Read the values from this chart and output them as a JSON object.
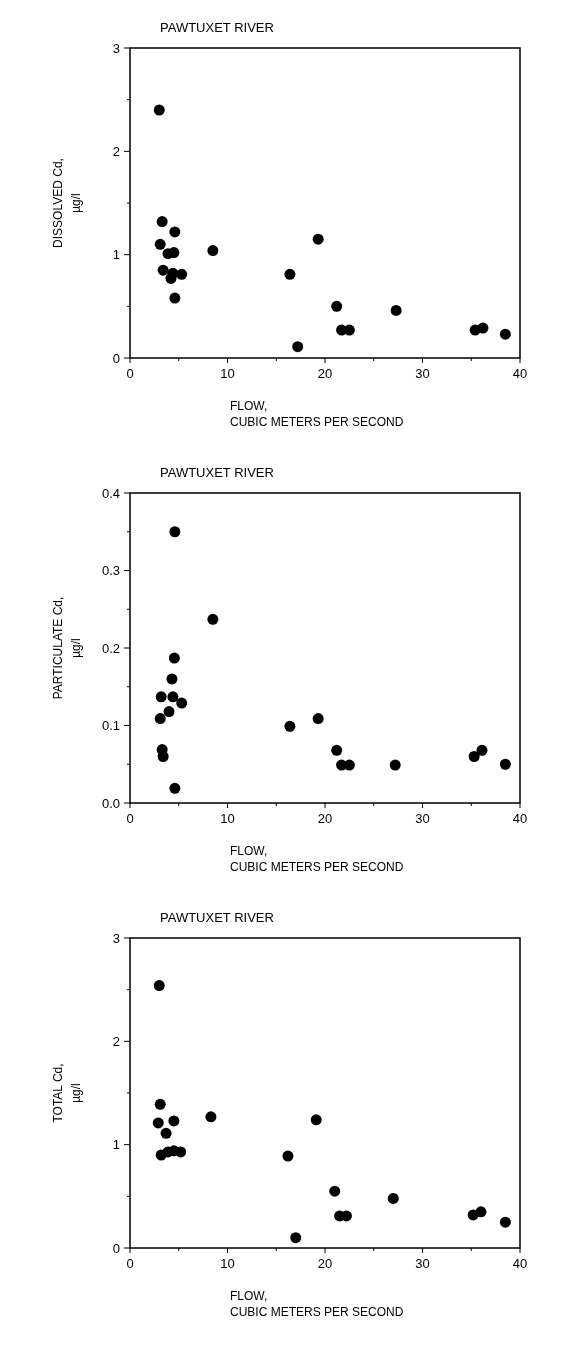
{
  "chart_data": [
    {
      "type": "scatter",
      "title": "PAWTUXET RIVER",
      "xlabel": "FLOW,\nCUBIC METERS PER SECOND",
      "ylabel": "DISSOLVED Cd,\nµg/l",
      "marker": "circle",
      "grid": false,
      "xlim": [
        0,
        40
      ],
      "ylim": [
        0,
        3
      ],
      "xticks": [
        0,
        {
          "value": 5,
          "label": null
        },
        10,
        {
          "value": 15,
          "label": null
        },
        20,
        {
          "value": 25,
          "label": null
        },
        30,
        {
          "value": 35,
          "label": null
        },
        40
      ],
      "yticks": [
        0,
        {
          "value": 0.5,
          "label": null
        },
        1,
        {
          "value": 1.5,
          "label": null
        },
        2,
        {
          "value": 2.5,
          "label": null
        },
        3
      ],
      "series": [
        {
          "color": "#000000",
          "x": [
            3.0,
            3.3,
            4.6,
            3.1,
            3.9,
            4.5,
            8.5,
            3.4,
            4.2,
            4.4,
            5.3,
            4.6,
            16.4,
            19.3,
            17.2,
            21.2,
            21.7,
            22.5,
            27.3,
            35.4,
            36.2,
            38.5
          ],
          "values": [
            2.4,
            1.32,
            1.22,
            1.1,
            1.01,
            1.02,
            1.04,
            0.85,
            0.77,
            0.82,
            0.81,
            0.58,
            0.81,
            1.15,
            0.11,
            0.5,
            0.27,
            0.27,
            0.46,
            0.27,
            0.29,
            0.23
          ]
        }
      ]
    },
    {
      "type": "scatter",
      "title": "PAWTUXET RIVER",
      "xlabel": "FLOW,\nCUBIC METERS PER SECOND",
      "ylabel": "PARTICULATE Cd,\nµg/l",
      "marker": "circle",
      "grid": false,
      "xlim": [
        0,
        40
      ],
      "ylim": [
        0,
        0.4
      ],
      "xticks": [
        0,
        {
          "value": 5,
          "label": null
        },
        10,
        {
          "value": 15,
          "label": null
        },
        20,
        {
          "value": 25,
          "label": null
        },
        30,
        {
          "value": 35,
          "label": null
        },
        40
      ],
      "yticks": [
        {
          "value": 0,
          "label": "0.0"
        },
        {
          "value": 0.05,
          "label": null
        },
        0.1,
        {
          "value": 0.15,
          "label": null
        },
        0.2,
        {
          "value": 0.25,
          "label": null
        },
        0.3,
        {
          "value": 0.35,
          "label": null
        },
        0.4
      ],
      "series": [
        {
          "color": "#000000",
          "x": [
            4.6,
            8.5,
            4.55,
            4.3,
            3.2,
            4.4,
            5.3,
            4.0,
            3.1,
            3.3,
            3.4,
            4.6,
            16.4,
            19.3,
            21.2,
            21.7,
            22.5,
            27.2,
            35.3,
            36.1,
            38.5
          ],
          "values": [
            0.35,
            0.237,
            0.187,
            0.16,
            0.137,
            0.137,
            0.129,
            0.118,
            0.109,
            0.069,
            0.06,
            0.019,
            0.099,
            0.109,
            0.068,
            0.049,
            0.049,
            0.049,
            0.06,
            0.068,
            0.05
          ]
        }
      ]
    },
    {
      "type": "scatter",
      "title": "PAWTUXET RIVER",
      "xlabel": "FLOW,\nCUBIC METERS PER SECOND",
      "ylabel": "TOTAL Cd,\nµg/l",
      "marker": "circle",
      "grid": false,
      "xlim": [
        0,
        40
      ],
      "ylim": [
        0,
        3
      ],
      "xticks": [
        0,
        {
          "value": 5,
          "label": null
        },
        10,
        {
          "value": 15,
          "label": null
        },
        20,
        {
          "value": 25,
          "label": null
        },
        30,
        {
          "value": 35,
          "label": null
        },
        40
      ],
      "yticks": [
        0,
        {
          "value": 0.5,
          "label": null
        },
        1,
        {
          "value": 1.5,
          "label": null
        },
        2,
        {
          "value": 2.5,
          "label": null
        },
        3
      ],
      "series": [
        {
          "color": "#000000",
          "x": [
            3.0,
            3.1,
            2.9,
            3.7,
            4.5,
            8.3,
            3.2,
            3.9,
            4.5,
            5.2,
            16.2,
            19.1,
            17.0,
            21.0,
            21.5,
            22.2,
            27.0,
            35.2,
            36.0,
            38.5
          ],
          "values": [
            2.54,
            1.39,
            1.21,
            1.11,
            1.23,
            1.27,
            0.9,
            0.93,
            0.94,
            0.93,
            0.89,
            1.24,
            0.1,
            0.55,
            0.31,
            0.31,
            0.48,
            0.32,
            0.35,
            0.25
          ]
        }
      ]
    }
  ]
}
